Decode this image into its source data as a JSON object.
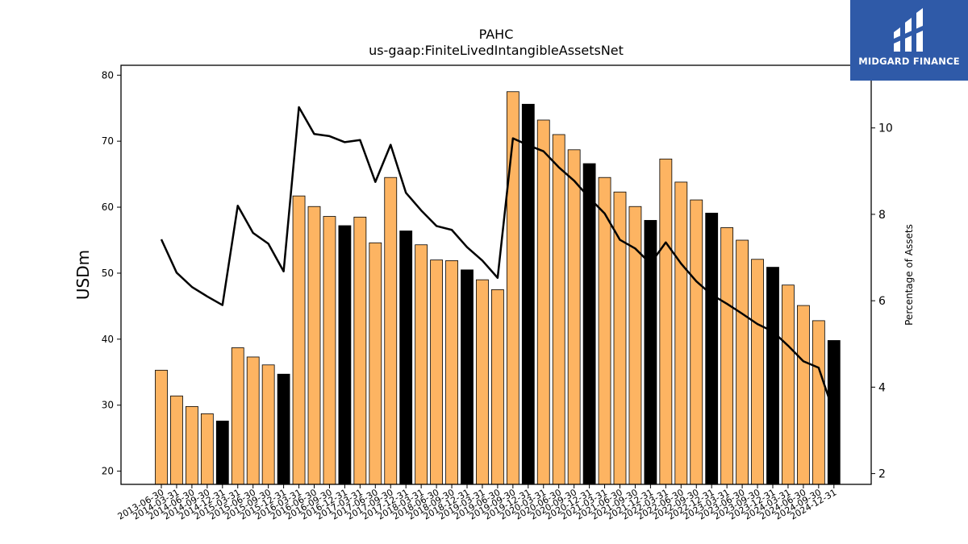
{
  "brand": {
    "name": "MIDGARD FINANCE",
    "logo_icon": "midgard-logo-icon",
    "color": "#2f5aa8"
  },
  "chart_data": {
    "type": "bar",
    "title": "PAHC",
    "subtitle": "us-gaap:FiniteLivedIntangibleAssetsNet",
    "ylabel": "USDm",
    "y2label": "Percentage of Assets",
    "ylim": [
      18,
      81.5
    ],
    "y2lim": [
      1.75,
      11.45
    ],
    "yticks": [
      20,
      30,
      40,
      50,
      60,
      70,
      80
    ],
    "y2ticks": [
      2,
      4,
      6,
      8,
      10
    ],
    "grid": false,
    "colors": {
      "bar": "#fdb462",
      "bar_highlight": "#000000",
      "line": "#000000"
    },
    "categories": [
      "2013-06-30",
      "2014-03-31",
      "2014-06-30",
      "2014-09-30",
      "2014-12-31",
      "2015-03-31",
      "2015-06-30",
      "2015-09-30",
      "2015-12-31",
      "2016-03-31",
      "2016-06-30",
      "2016-09-30",
      "2016-12-31",
      "2017-03-31",
      "2017-06-30",
      "2017-09-30",
      "2017-12-31",
      "2018-03-31",
      "2018-06-30",
      "2018-09-30",
      "2018-12-31",
      "2019-03-31",
      "2019-06-30",
      "2019-09-30",
      "2019-12-31",
      "2020-03-31",
      "2020-06-30",
      "2020-09-30",
      "2020-12-31",
      "2021-03-31",
      "2021-06-30",
      "2021-09-30",
      "2021-12-31",
      "2022-03-31",
      "2022-06-30",
      "2022-09-30",
      "2022-12-31",
      "2023-03-31",
      "2023-06-30",
      "2023-09-30",
      "2023-12-31",
      "2024-03-31",
      "2024-06-30",
      "2024-09-30",
      "2024-12-31"
    ],
    "series": [
      {
        "type": "bar",
        "axis": "left",
        "values": [
          35.3,
          31.4,
          29.8,
          28.7,
          27.6,
          38.7,
          37.3,
          36.1,
          34.7,
          61.7,
          60.1,
          58.6,
          57.2,
          58.5,
          54.6,
          64.5,
          56.4,
          54.3,
          52.0,
          51.9,
          50.5,
          49.0,
          47.5,
          77.5,
          75.6,
          73.2,
          71.0,
          68.7,
          66.6,
          64.5,
          62.3,
          60.1,
          58.0,
          67.3,
          63.8,
          61.1,
          59.1,
          56.9,
          55.0,
          52.1,
          50.9,
          48.2,
          45.1,
          42.8,
          39.8
        ],
        "highlight": [
          false,
          false,
          false,
          false,
          true,
          false,
          false,
          false,
          true,
          false,
          false,
          false,
          true,
          false,
          false,
          false,
          true,
          false,
          false,
          false,
          true,
          false,
          false,
          false,
          true,
          false,
          false,
          false,
          true,
          false,
          false,
          false,
          true,
          false,
          false,
          false,
          true,
          false,
          false,
          false,
          true,
          false,
          false,
          false,
          true
        ]
      },
      {
        "type": "line",
        "axis": "right",
        "values": [
          7.42,
          6.65,
          6.32,
          6.1,
          5.9,
          8.2,
          7.57,
          7.32,
          6.68,
          10.48,
          9.86,
          9.81,
          9.67,
          9.72,
          8.75,
          9.61,
          8.5,
          8.09,
          7.73,
          7.64,
          7.24,
          6.93,
          6.53,
          9.76,
          9.6,
          9.46,
          9.09,
          8.78,
          8.38,
          8.02,
          7.41,
          7.21,
          6.86,
          7.35,
          6.86,
          6.45,
          6.14,
          5.93,
          5.7,
          5.46,
          5.29,
          4.96,
          4.6,
          4.45,
          3.4
        ]
      }
    ]
  }
}
